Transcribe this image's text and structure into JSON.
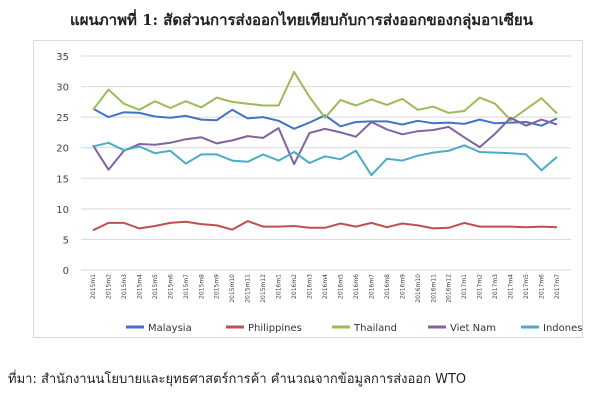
{
  "title": "แผนภาพที่ 1: สัดส่วนการส่งออกไทยเทียบกับการส่งออกของกลุ่มอาเซียน",
  "source": "ที่มา: สำนักงานนโยบายและยุทธศาสตร์การค้า คำนวณจากข้อมูลการส่งออก WTO",
  "chart_data": {
    "type": "line",
    "title": "แผนภาพที่ 1: สัดส่วนการส่งออกไทยเทียบกับการส่งออกของกลุ่มอาเซียน",
    "xlabel": "",
    "ylabel": "",
    "ylim": [
      0,
      35
    ],
    "yticks": [
      0,
      5,
      10,
      15,
      20,
      25,
      30,
      35
    ],
    "grid": "horizontal",
    "legend_position": "bottom",
    "categories": [
      "2015m1",
      "2015m2",
      "2015m3",
      "2015m4",
      "2015m5",
      "2015m6",
      "2015m7",
      "2015m8",
      "2015m9",
      "2015m10",
      "2015m11",
      "2015m12",
      "2016m1",
      "2016m2",
      "2016m3",
      "2016m4",
      "2016m5",
      "2016m6",
      "2016m7",
      "2016m8",
      "2016m9",
      "2016m10",
      "2016m11",
      "2016m12",
      "2017m1",
      "2017m2",
      "2017m3",
      "2017m4",
      "2017m5",
      "2017m6",
      "2017m7"
    ],
    "series": [
      {
        "name": "Malaysia",
        "color": "#4472c4",
        "values": [
          26.4,
          25.0,
          25.8,
          25.7,
          25.1,
          24.9,
          25.2,
          24.6,
          24.5,
          26.2,
          24.8,
          25.0,
          24.4,
          23.1,
          24.1,
          25.3,
          23.5,
          24.2,
          24.3,
          24.3,
          23.8,
          24.4,
          24.0,
          24.1,
          23.9,
          24.6,
          24.0,
          24.1,
          24.2,
          23.6,
          24.8
        ]
      },
      {
        "name": "Philippines",
        "color": "#c0504d",
        "values": [
          6.5,
          7.7,
          7.7,
          6.8,
          7.2,
          7.7,
          7.9,
          7.5,
          7.3,
          6.6,
          8.0,
          7.1,
          7.1,
          7.2,
          6.9,
          6.9,
          7.6,
          7.1,
          7.7,
          7.0,
          7.6,
          7.3,
          6.8,
          6.9,
          7.7,
          7.1,
          7.1,
          7.1,
          7.0,
          7.1,
          7.0
        ]
      },
      {
        "name": "Thailand",
        "color": "#9bbb59",
        "values": [
          26.2,
          29.5,
          27.2,
          26.2,
          27.6,
          26.5,
          27.6,
          26.6,
          28.2,
          27.5,
          27.2,
          26.9,
          26.9,
          32.4,
          28.3,
          24.9,
          27.8,
          26.9,
          27.9,
          27.0,
          28.0,
          26.2,
          26.7,
          25.7,
          26.0,
          28.2,
          27.2,
          24.5,
          26.3,
          28.1,
          25.6
        ]
      },
      {
        "name": "Viet Nam",
        "color": "#8064a2",
        "values": [
          20.4,
          16.4,
          19.5,
          20.6,
          20.5,
          20.8,
          21.4,
          21.7,
          20.7,
          21.2,
          21.9,
          21.6,
          23.2,
          17.3,
          22.4,
          23.1,
          22.5,
          21.8,
          24.2,
          23.0,
          22.2,
          22.7,
          22.9,
          23.4,
          21.7,
          20.1,
          22.3,
          24.9,
          23.6,
          24.6,
          23.8
        ]
      },
      {
        "name": "Indonesia",
        "color": "#4bacc6",
        "values": [
          20.2,
          20.8,
          19.6,
          20.2,
          19.1,
          19.5,
          17.4,
          18.9,
          18.9,
          17.9,
          17.7,
          18.9,
          17.9,
          19.3,
          17.5,
          18.6,
          18.1,
          19.5,
          15.5,
          18.2,
          17.9,
          18.7,
          19.2,
          19.5,
          20.4,
          19.3,
          19.2,
          19.1,
          18.9,
          16.3,
          18.5
        ]
      }
    ]
  }
}
